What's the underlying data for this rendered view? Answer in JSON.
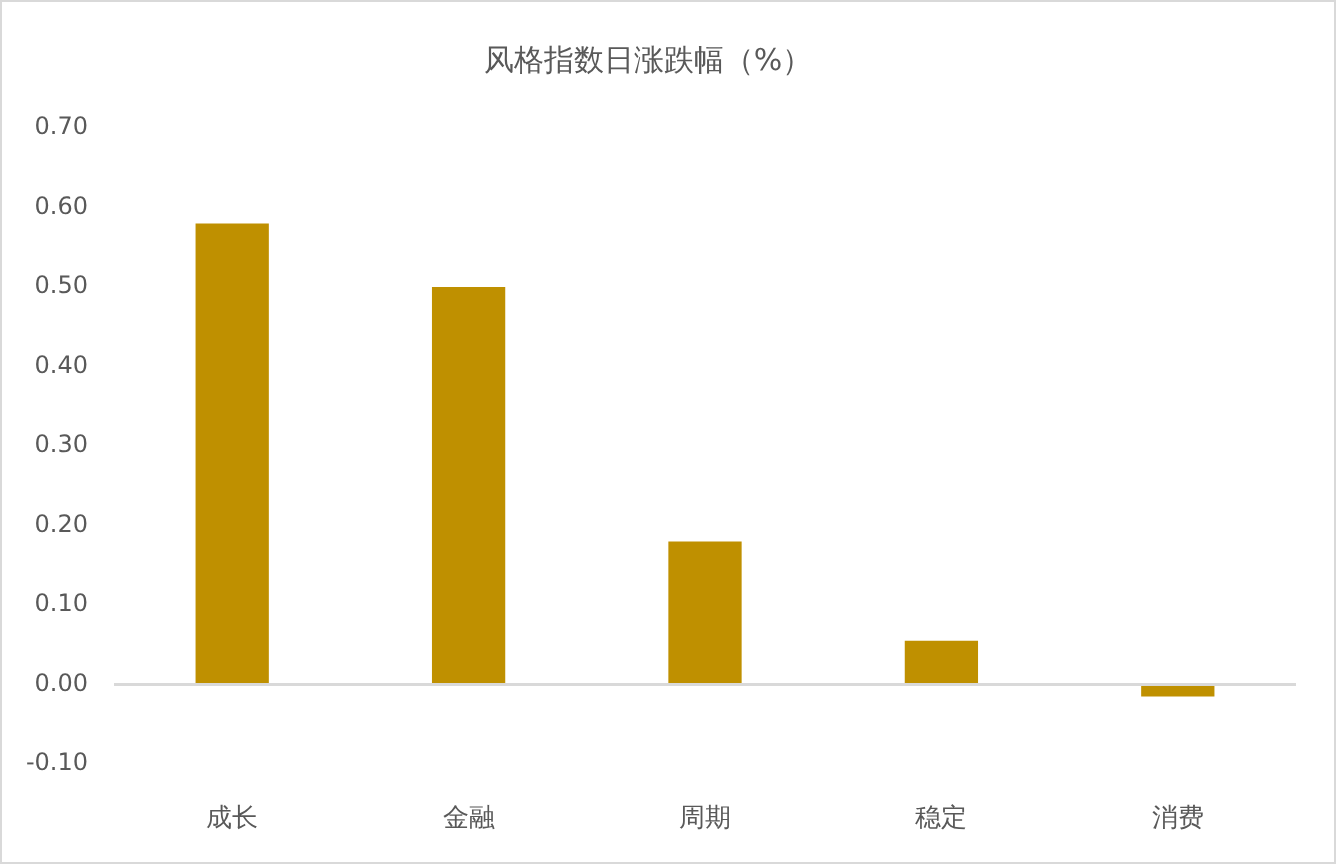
{
  "chart_data": {
    "type": "bar",
    "title": "风格指数日涨跌幅（%）",
    "categories": [
      "成长",
      "金融",
      "周期",
      "稳定",
      "消费"
    ],
    "values": [
      0.58,
      0.5,
      0.18,
      0.055,
      -0.015
    ],
    "color": "#bf9000",
    "ylim": [
      -0.1,
      0.7
    ],
    "yticks": [
      {
        "value": -0.1,
        "label": "-0.10"
      },
      {
        "value": 0,
        "label": "0.00"
      },
      {
        "value": 0.1,
        "label": "0.10"
      },
      {
        "value": 0.2,
        "label": "0.20"
      },
      {
        "value": 0.3,
        "label": "0.30"
      },
      {
        "value": 0.4,
        "label": "0.40"
      },
      {
        "value": 0.5,
        "label": "0.50"
      },
      {
        "value": 0.6,
        "label": "0.60"
      },
      {
        "value": 0.7,
        "label": "0.70"
      }
    ]
  }
}
